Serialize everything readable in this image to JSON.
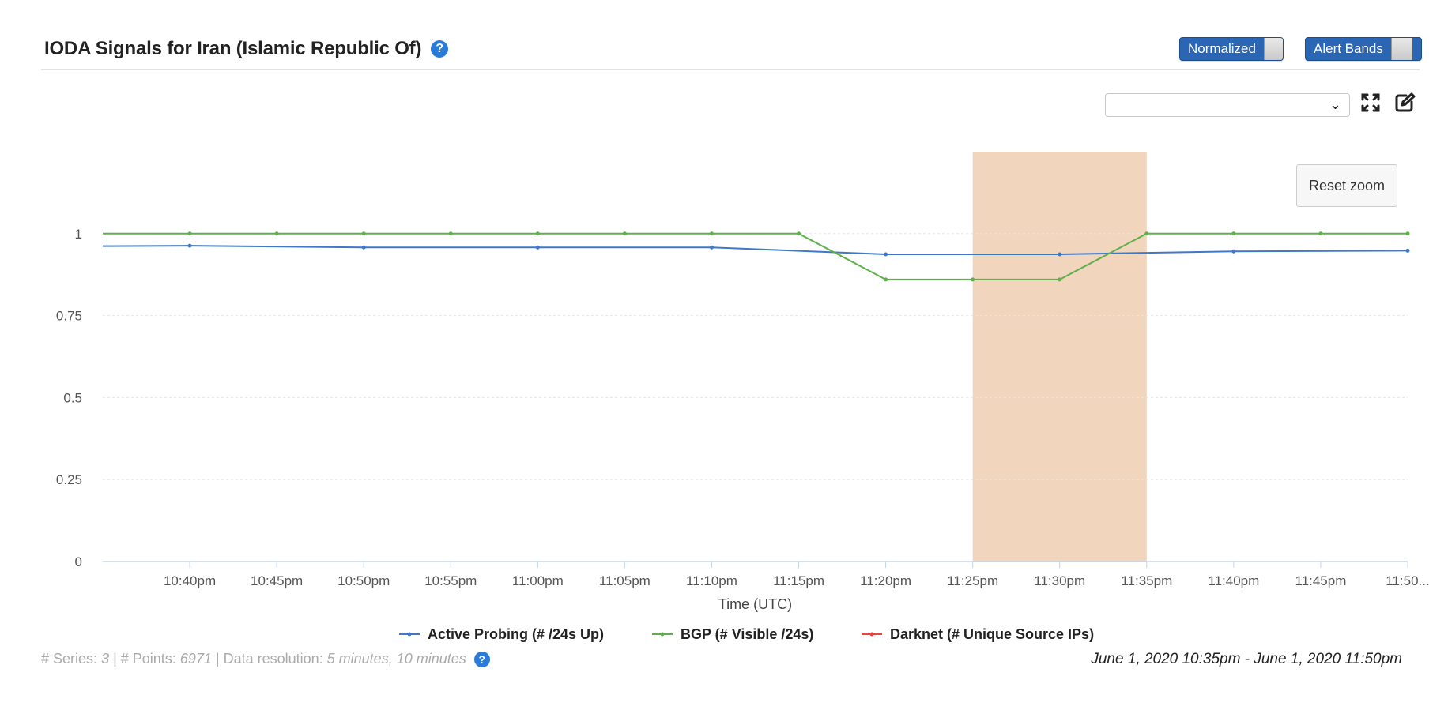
{
  "header": {
    "title": "IODA Signals for Iran (Islamic Republic Of)",
    "help_icon": "?",
    "toggles": [
      {
        "label": "Normalized",
        "on": true
      },
      {
        "label": "Alert Bands",
        "on": true
      }
    ]
  },
  "toolbar": {
    "select_value": "",
    "icons": [
      "expand-icon",
      "edit-icon"
    ]
  },
  "chart": {
    "reset_zoom_label": "Reset zoom"
  },
  "chart_data": {
    "type": "line",
    "xlabel": "Time (UTC)",
    "ylabel": "",
    "ylim": [
      0,
      1.25
    ],
    "y_ticks": [
      "0",
      "0.25",
      "0.5",
      "0.75",
      "1"
    ],
    "x_ticks": [
      "10:40pm",
      "10:45pm",
      "10:50pm",
      "10:55pm",
      "11:00pm",
      "11:05pm",
      "11:10pm",
      "11:15pm",
      "11:20pm",
      "11:25pm",
      "11:30pm",
      "11:35pm",
      "11:40pm",
      "11:45pm",
      "11:50..."
    ],
    "x_range": [
      "10:35pm",
      "11:50pm"
    ],
    "grid": true,
    "alert_band": {
      "start": "11:25pm",
      "end": "11:35pm",
      "color": "#f2d5bd"
    },
    "series": [
      {
        "name": "Active Probing (# /24s Up)",
        "color": "#3f78c8",
        "x": [
          "10:35pm",
          "10:40pm",
          "10:50pm",
          "11:00pm",
          "11:10pm",
          "11:20pm",
          "11:30pm",
          "11:40pm",
          "11:50pm"
        ],
        "values": [
          0.962,
          0.963,
          0.958,
          0.958,
          0.958,
          0.937,
          0.937,
          0.946,
          0.948
        ]
      },
      {
        "name": "BGP (# Visible /24s)",
        "color": "#5fb04b",
        "x": [
          "10:35pm",
          "10:40pm",
          "10:45pm",
          "10:50pm",
          "10:55pm",
          "11:00pm",
          "11:05pm",
          "11:10pm",
          "11:15pm",
          "11:20pm",
          "11:25pm",
          "11:30pm",
          "11:35pm",
          "11:40pm",
          "11:45pm",
          "11:50pm"
        ],
        "values": [
          1.0,
          1.0,
          1.0,
          1.0,
          1.0,
          1.0,
          1.0,
          1.0,
          1.0,
          0.86,
          0.86,
          0.86,
          1.0,
          1.0,
          1.0,
          1.0
        ]
      },
      {
        "name": "Darknet (# Unique Source IPs)",
        "color": "#e8453c",
        "x": [],
        "values": []
      }
    ]
  },
  "footer": {
    "series_label": "# Series:",
    "series_count": "3",
    "points_label": "| # Points:",
    "points_count": "6971",
    "resolution_label": "| Data resolution:",
    "resolution_value": "5 minutes, 10 minutes",
    "date_range": "June 1, 2020 10:35pm - June 1, 2020 11:50pm"
  }
}
